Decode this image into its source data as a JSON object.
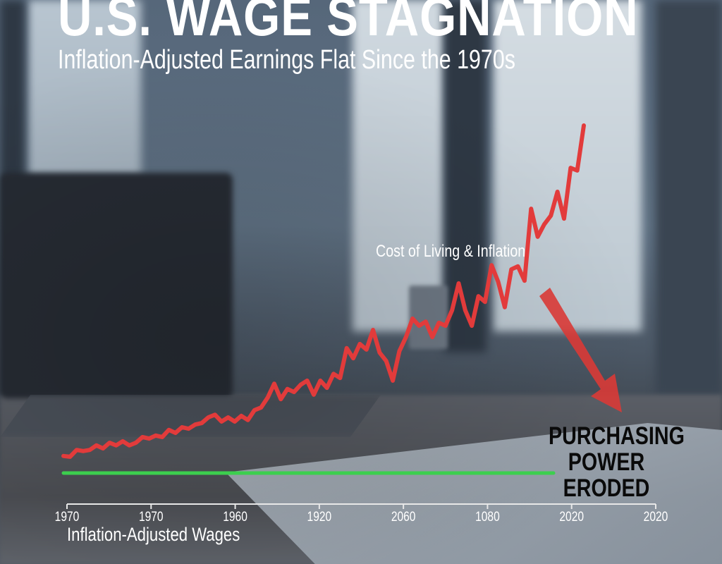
{
  "title": "U.S. WAGE STAGNATION",
  "subtitle": "Inflation-Adjusted Earnings Flat Since the 1970s",
  "chart_data": {
    "type": "line",
    "title": "U.S. WAGE STAGNATION",
    "subtitle": "Inflation-Adjusted Earnings Flat Since the 1970s",
    "xlabel": "Inflation-Adjusted Wages",
    "ylabel": "",
    "x_tick_labels": [
      "1970",
      "1970",
      "1960",
      "1920",
      "2060",
      "1080",
      "2020",
      "2020"
    ],
    "grid": false,
    "series": [
      {
        "name": "Cost of Living & Inflation",
        "color": "#e23b3b",
        "values": [
          12.7,
          12.5,
          14.3,
          14,
          14.3,
          15.5,
          14.7,
          16.2,
          15.5,
          16.6,
          15.5,
          16.2,
          17.7,
          17.3,
          18.1,
          17.7,
          19.6,
          18.8,
          20.3,
          19.9,
          21,
          21.4,
          22.9,
          23.6,
          21.8,
          22.9,
          21.8,
          23.3,
          22.2,
          24.8,
          25.5,
          28.1,
          31.8,
          27.7,
          30.4,
          29.6,
          31.5,
          32.6,
          28.9,
          32.6,
          30.7,
          34.4,
          33.3,
          41.2,
          38.5,
          42.3,
          40.8,
          46,
          40,
          37.8,
          32.6,
          40.4,
          44.1,
          49,
          47.1,
          48.2,
          44.1,
          47.9,
          47.1,
          51.2,
          58.3,
          51.2,
          47.1,
          54.9,
          53.4,
          63.1,
          58.7,
          52,
          62,
          62.8,
          59,
          78,
          70.6,
          73.9,
          76.2,
          82.5,
          75.4,
          88.8,
          88.1,
          100
        ]
      },
      {
        "name": "Inflation-Adjusted Wages",
        "color": "#3ccf4e",
        "values": [
          8.2,
          8.2
        ]
      }
    ],
    "annotations": [
      "Cost of Living & Inflation",
      "PURCHASING POWER ERODED"
    ]
  },
  "callout": [
    "PURCHASING",
    "POWER",
    "ERODED"
  ],
  "colors": {
    "inflation": "#e23b3b",
    "wages": "#3ccf4e",
    "arrow": "#d93a36"
  }
}
